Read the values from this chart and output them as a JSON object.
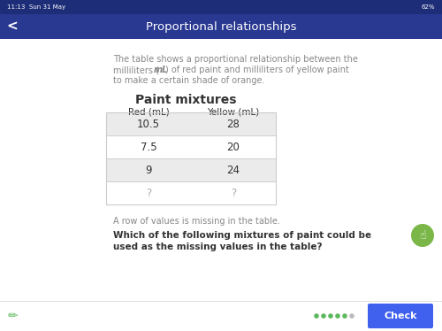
{
  "title": "Proportional relationships",
  "table_title": "Paint mixtures",
  "col_headers": [
    "Red (mL)",
    "Yellow (mL)"
  ],
  "rows": [
    [
      "10.5",
      "28"
    ],
    [
      "7.5",
      "20"
    ],
    [
      "9",
      "24"
    ],
    [
      "?",
      "?"
    ]
  ],
  "row_shaded": [
    true,
    false,
    true,
    false
  ],
  "desc_line1": "The table shows a proportional relationship between the",
  "desc_line2a": "milliliters (",
  "desc_line2b": "mL",
  "desc_line2c": ") of red paint and milliliters of yellow paint",
  "desc_line3": "to make a certain shade of orange.",
  "note": "A row of values is missing in the table.",
  "question_line1": "Which of the following mixtures of paint could be",
  "question_line2": "used as the missing values in the table?",
  "nav_bar_color": "#293891",
  "status_bar_color": "#1e2d78",
  "shaded_row_bg": "#ebebeb",
  "white_row_bg": "#ffffff",
  "table_border_color": "#cccccc",
  "page_bg": "#f0f0f0",
  "content_bg": "#ffffff",
  "check_btn_color": "#4060ee",
  "dots_color": "#5cb85c",
  "dot_empty_color": "#bbbbbb",
  "bulb_bg": "#7ab648",
  "text_gray": "#888888",
  "text_dark": "#333333",
  "text_light": "#aaaaaa",
  "status_time": "11:13  Sun 31 May",
  "status_pct": "62%"
}
